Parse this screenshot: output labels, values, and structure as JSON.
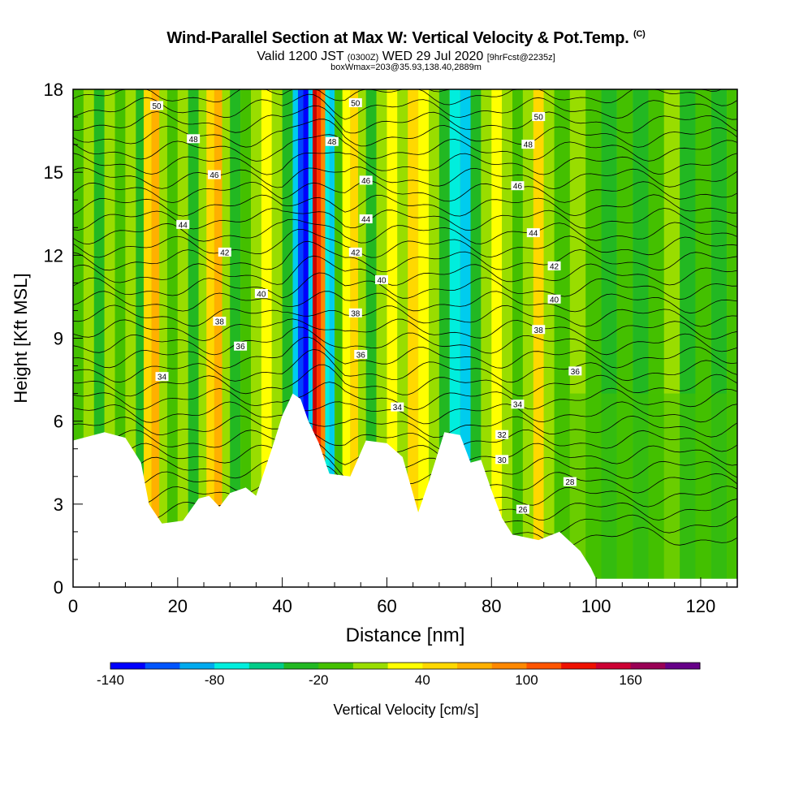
{
  "titles": {
    "main": "Wind-Parallel Section at Max W: Vertical Velocity & Pot.Temp.",
    "copyright": "(C)",
    "valid_prefix": "Valid 1200 JST",
    "valid_utc": "(0300Z)",
    "valid_date": "WED 29 Jul 2020",
    "forecast": "[9hrFcst@2235z]",
    "box_info": "boxWmax=203@35.93,138.40,2889m"
  },
  "chart_data": {
    "type": "heatmap",
    "xlabel": "Distance [nm]",
    "ylabel": "Height [Kft MSL]",
    "xlim": [
      0,
      127
    ],
    "ylim": [
      0,
      18
    ],
    "x_ticks": [
      0,
      20,
      40,
      60,
      80,
      100,
      120
    ],
    "y_ticks": [
      0,
      3,
      6,
      9,
      12,
      15,
      18
    ],
    "colorbar": {
      "label": "Vertical Velocity [cm/s]",
      "tick_labels": [
        "-140",
        "-80",
        "-20",
        "40",
        "100",
        "160"
      ],
      "tick_values": [
        -140,
        -80,
        -20,
        40,
        100,
        160
      ],
      "min": -140,
      "max": 200,
      "colors": [
        "#0000ff",
        "#0055ff",
        "#00aaee",
        "#00eedd",
        "#00cc88",
        "#22b822",
        "#44c000",
        "#99dd00",
        "#ffff00",
        "#ffd800",
        "#ffb000",
        "#ff8800",
        "#ff5500",
        "#ee1100",
        "#cc0033",
        "#990055",
        "#660088"
      ]
    },
    "terrain_peaks_kft": [
      {
        "x": 0,
        "h": 5.3
      },
      {
        "x": 17,
        "h": 2.3
      },
      {
        "x": 28,
        "h": 3.4
      },
      {
        "x": 35,
        "h": 3.3
      },
      {
        "x": 42,
        "h": 7.0
      },
      {
        "x": 50,
        "h": 4.1
      },
      {
        "x": 60,
        "h": 5.2
      },
      {
        "x": 67,
        "h": 2.7
      },
      {
        "x": 75,
        "h": 5.5
      },
      {
        "x": 85,
        "h": 1.9
      },
      {
        "x": 100,
        "h": 0.3
      },
      {
        "x": 127,
        "h": 0.3
      }
    ],
    "isentrope_labels": [
      {
        "text": "50",
        "x": 16,
        "y": 17.4
      },
      {
        "text": "48",
        "x": 23,
        "y": 16.2
      },
      {
        "text": "46",
        "x": 27,
        "y": 14.9
      },
      {
        "text": "44",
        "x": 21,
        "y": 13.1
      },
      {
        "text": "42",
        "x": 29,
        "y": 12.1
      },
      {
        "text": "40",
        "x": 36,
        "y": 10.6
      },
      {
        "text": "38",
        "x": 28,
        "y": 9.6
      },
      {
        "text": "36",
        "x": 32,
        "y": 8.7
      },
      {
        "text": "34",
        "x": 17,
        "y": 7.6
      },
      {
        "text": "50",
        "x": 54,
        "y": 17.5
      },
      {
        "text": "48",
        "x": 49.5,
        "y": 16.1
      },
      {
        "text": "46",
        "x": 56,
        "y": 14.7
      },
      {
        "text": "44",
        "x": 56,
        "y": 13.3
      },
      {
        "text": "42",
        "x": 54,
        "y": 12.1
      },
      {
        "text": "40",
        "x": 59,
        "y": 11.1
      },
      {
        "text": "38",
        "x": 54,
        "y": 9.9
      },
      {
        "text": "36",
        "x": 55,
        "y": 8.4
      },
      {
        "text": "34",
        "x": 62,
        "y": 6.5
      },
      {
        "text": "50",
        "x": 89,
        "y": 17.0
      },
      {
        "text": "48",
        "x": 87,
        "y": 16.0
      },
      {
        "text": "46",
        "x": 85,
        "y": 14.5
      },
      {
        "text": "44",
        "x": 88,
        "y": 12.8
      },
      {
        "text": "42",
        "x": 92,
        "y": 11.6
      },
      {
        "text": "40",
        "x": 92,
        "y": 10.4
      },
      {
        "text": "38",
        "x": 89,
        "y": 9.3
      },
      {
        "text": "36",
        "x": 96,
        "y": 7.8
      },
      {
        "text": "34",
        "x": 85,
        "y": 6.6
      },
      {
        "text": "32",
        "x": 82,
        "y": 5.5
      },
      {
        "text": "30",
        "x": 82,
        "y": 4.6
      },
      {
        "text": "28",
        "x": 95,
        "y": 3.8
      },
      {
        "text": "26",
        "x": 86,
        "y": 2.8
      }
    ]
  }
}
